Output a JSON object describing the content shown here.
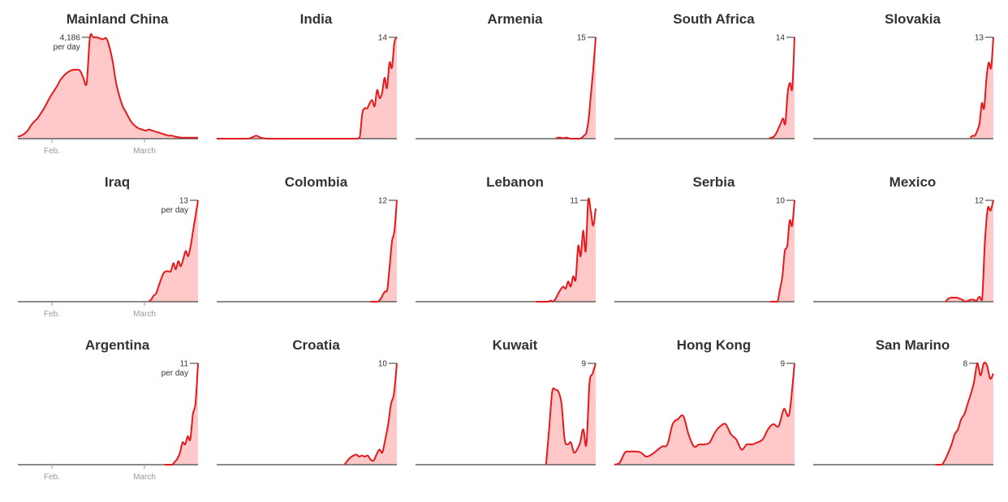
{
  "colors": {
    "line": "#e41a1c",
    "fill": "#ffc9c9",
    "baseline": "#444444",
    "tick": "#999999"
  },
  "per_day_label": "per day",
  "x_axis_labels": [
    "Feb.",
    "March"
  ],
  "chart_data": [
    {
      "type": "area",
      "title": "Mainland China",
      "peak_label": "4,186",
      "show_per_day": true,
      "show_axis": true,
      "ylim": [
        0,
        4186
      ],
      "values": [
        0.02,
        0.03,
        0.05,
        0.08,
        0.13,
        0.17,
        0.2,
        0.25,
        0.3,
        0.36,
        0.42,
        0.47,
        0.52,
        0.58,
        0.62,
        0.65,
        0.67,
        0.68,
        0.68,
        0.67,
        0.6,
        0.55,
        1.0,
        1.0,
        1.0,
        0.99,
        0.98,
        0.99,
        0.9,
        0.75,
        0.55,
        0.42,
        0.32,
        0.26,
        0.2,
        0.15,
        0.12,
        0.1,
        0.09,
        0.08,
        0.09,
        0.08,
        0.07,
        0.06,
        0.05,
        0.04,
        0.03,
        0.03,
        0.02,
        0.015,
        0.01,
        0.01,
        0.01,
        0.01,
        0.01,
        0.01
      ]
    },
    {
      "type": "area",
      "title": "India",
      "peak_label": "14",
      "show_per_day": false,
      "show_axis": false,
      "ylim": [
        0,
        14
      ],
      "values": [
        0,
        0,
        0,
        0,
        0,
        0,
        0,
        0,
        0,
        0,
        0,
        0,
        0,
        0,
        0.01,
        0.02,
        0.03,
        0.02,
        0.01,
        0.005,
        0,
        0,
        0,
        0,
        0,
        0,
        0,
        0,
        0,
        0,
        0,
        0,
        0,
        0,
        0,
        0,
        0,
        0,
        0,
        0,
        0,
        0,
        0,
        0,
        0,
        0,
        0,
        0,
        0,
        0,
        0,
        0,
        0,
        0,
        0,
        0,
        0,
        0,
        0.02,
        0.25,
        0.3,
        0.3,
        0.35,
        0.38,
        0.32,
        0.48,
        0.4,
        0.45,
        0.6,
        0.5,
        0.75,
        0.7,
        0.95,
        1.0
      ]
    },
    {
      "type": "area",
      "title": "Armenia",
      "peak_label": "15",
      "show_per_day": false,
      "show_axis": false,
      "ylim": [
        0,
        15
      ],
      "values": [
        null,
        null,
        null,
        null,
        null,
        null,
        null,
        null,
        null,
        null,
        null,
        null,
        null,
        null,
        null,
        null,
        null,
        null,
        null,
        null,
        null,
        null,
        null,
        null,
        null,
        null,
        null,
        null,
        null,
        null,
        null,
        null,
        null,
        null,
        null,
        null,
        null,
        null,
        null,
        null,
        null,
        null,
        null,
        null,
        null,
        null,
        null,
        null,
        null,
        null,
        null,
        null,
        null,
        null,
        null,
        null,
        null,
        null,
        null,
        null,
        0.005,
        0.01,
        0.01,
        0.005,
        0.01,
        0.01,
        0,
        0,
        0,
        0,
        0,
        0.01,
        0.03,
        0.06,
        0.2,
        0.45,
        0.7,
        1.0
      ]
    },
    {
      "type": "area",
      "title": "South Africa",
      "peak_label": "14",
      "show_per_day": false,
      "show_axis": false,
      "ylim": [
        0,
        14
      ],
      "values": [
        null,
        null,
        null,
        null,
        null,
        null,
        null,
        null,
        null,
        null,
        null,
        null,
        null,
        null,
        null,
        null,
        null,
        null,
        null,
        null,
        null,
        null,
        null,
        null,
        null,
        null,
        null,
        null,
        null,
        null,
        null,
        null,
        null,
        null,
        null,
        null,
        null,
        null,
        null,
        null,
        null,
        null,
        null,
        null,
        null,
        null,
        null,
        null,
        null,
        null,
        null,
        null,
        null,
        null,
        null,
        null,
        null,
        null,
        null,
        null,
        null,
        null,
        null,
        null,
        null,
        null,
        null,
        0.005,
        0.01,
        0.02,
        0.05,
        0.1,
        0.15,
        0.2,
        0.15,
        0.45,
        0.55,
        0.5,
        1.0
      ]
    },
    {
      "type": "area",
      "title": "Slovakia",
      "peak_label": "13",
      "show_per_day": false,
      "show_axis": false,
      "ylim": [
        0,
        13
      ],
      "values": [
        null,
        null,
        null,
        null,
        null,
        null,
        null,
        null,
        null,
        null,
        null,
        null,
        null,
        null,
        null,
        null,
        null,
        null,
        null,
        null,
        null,
        null,
        null,
        null,
        null,
        null,
        null,
        null,
        null,
        null,
        null,
        null,
        null,
        null,
        null,
        null,
        null,
        null,
        null,
        null,
        null,
        null,
        null,
        null,
        null,
        null,
        null,
        null,
        null,
        null,
        null,
        null,
        null,
        null,
        null,
        null,
        null,
        null,
        null,
        null,
        null,
        null,
        null,
        null,
        null,
        null,
        null,
        null,
        0.01,
        0.03,
        0.03,
        0.08,
        0.15,
        0.35,
        0.3,
        0.6,
        0.75,
        0.7,
        1.0
      ]
    },
    {
      "type": "area",
      "title": "Iraq",
      "peak_label": "13",
      "show_per_day": true,
      "show_axis": true,
      "ylim": [
        0,
        13
      ],
      "values": [
        null,
        null,
        null,
        null,
        null,
        null,
        null,
        null,
        null,
        null,
        null,
        null,
        null,
        null,
        null,
        null,
        null,
        null,
        null,
        null,
        null,
        null,
        null,
        null,
        null,
        null,
        null,
        null,
        null,
        null,
        null,
        null,
        null,
        null,
        null,
        null,
        null,
        null,
        null,
        null,
        null,
        null,
        null,
        null,
        null,
        null,
        null,
        null,
        null,
        null,
        null,
        null,
        null,
        0,
        0.02,
        0.06,
        0.08,
        0.15,
        0.22,
        0.28,
        0.3,
        0.3,
        0.3,
        0.38,
        0.32,
        0.4,
        0.35,
        0.42,
        0.5,
        0.45,
        0.55,
        0.7,
        0.85,
        1.0
      ]
    },
    {
      "type": "area",
      "title": "Colombia",
      "peak_label": "12",
      "show_per_day": false,
      "show_axis": false,
      "ylim": [
        0,
        12
      ],
      "values": [
        null,
        null,
        null,
        null,
        null,
        null,
        null,
        null,
        null,
        null,
        null,
        null,
        null,
        null,
        null,
        null,
        null,
        null,
        null,
        null,
        null,
        null,
        null,
        null,
        null,
        null,
        null,
        null,
        null,
        null,
        null,
        null,
        null,
        null,
        null,
        null,
        null,
        null,
        null,
        null,
        null,
        null,
        null,
        null,
        null,
        null,
        null,
        null,
        null,
        null,
        null,
        null,
        null,
        null,
        null,
        null,
        null,
        null,
        null,
        null,
        null,
        null,
        null,
        null,
        0,
        0,
        0,
        0,
        0.02,
        0.06,
        0.1,
        0.12,
        0.35,
        0.6,
        0.7,
        1.0
      ]
    },
    {
      "type": "area",
      "title": "Lebanon",
      "peak_label": "11",
      "show_per_day": false,
      "show_axis": false,
      "ylim": [
        0,
        11
      ],
      "values": [
        null,
        null,
        null,
        null,
        null,
        null,
        null,
        null,
        null,
        null,
        null,
        null,
        null,
        null,
        null,
        null,
        null,
        null,
        null,
        null,
        null,
        null,
        null,
        null,
        null,
        null,
        null,
        null,
        null,
        null,
        null,
        null,
        null,
        null,
        null,
        null,
        null,
        null,
        null,
        null,
        null,
        null,
        null,
        null,
        null,
        null,
        null,
        null,
        0,
        0,
        0,
        0,
        0,
        0,
        0.01,
        0,
        0.03,
        0.08,
        0.12,
        0.15,
        0.13,
        0.2,
        0.15,
        0.25,
        0.22,
        0.55,
        0.45,
        0.7,
        0.5,
        1.0,
        0.9,
        0.75,
        0.92
      ]
    },
    {
      "type": "area",
      "title": "Serbia",
      "peak_label": "10",
      "show_per_day": false,
      "show_axis": false,
      "ylim": [
        0,
        10
      ],
      "values": [
        null,
        null,
        null,
        null,
        null,
        null,
        null,
        null,
        null,
        null,
        null,
        null,
        null,
        null,
        null,
        null,
        null,
        null,
        null,
        null,
        null,
        null,
        null,
        null,
        null,
        null,
        null,
        null,
        null,
        null,
        null,
        null,
        null,
        null,
        null,
        null,
        null,
        null,
        null,
        null,
        null,
        null,
        null,
        null,
        null,
        null,
        null,
        null,
        null,
        null,
        null,
        null,
        null,
        null,
        null,
        null,
        null,
        null,
        null,
        null,
        null,
        null,
        null,
        null,
        0,
        0,
        0,
        0,
        0.12,
        0.25,
        0.5,
        0.55,
        0.8,
        0.75,
        1.0
      ]
    },
    {
      "type": "area",
      "title": "Mexico",
      "peak_label": "12",
      "show_per_day": false,
      "show_axis": false,
      "ylim": [
        0,
        12
      ],
      "values": [
        null,
        null,
        null,
        null,
        null,
        null,
        null,
        null,
        null,
        null,
        null,
        null,
        null,
        null,
        null,
        null,
        null,
        null,
        null,
        null,
        null,
        null,
        null,
        null,
        null,
        null,
        null,
        null,
        null,
        null,
        null,
        null,
        null,
        null,
        null,
        null,
        null,
        null,
        null,
        null,
        null,
        null,
        null,
        null,
        null,
        null,
        null,
        0,
        0.03,
        0.04,
        0.04,
        0.04,
        0.03,
        0.02,
        0,
        0.01,
        0.02,
        0.02,
        0.01,
        0.05,
        0.02,
        0.6,
        0.92,
        0.9,
        1.0
      ]
    },
    {
      "type": "area",
      "title": "Argentina",
      "peak_label": "11",
      "show_per_day": true,
      "show_axis": true,
      "ylim": [
        0,
        11
      ],
      "values": [
        null,
        null,
        null,
        null,
        null,
        null,
        null,
        null,
        null,
        null,
        null,
        null,
        null,
        null,
        null,
        null,
        null,
        null,
        null,
        null,
        null,
        null,
        null,
        null,
        null,
        null,
        null,
        null,
        null,
        null,
        null,
        null,
        null,
        null,
        null,
        null,
        null,
        null,
        null,
        null,
        null,
        null,
        null,
        null,
        null,
        null,
        null,
        null,
        null,
        null,
        null,
        null,
        null,
        null,
        null,
        null,
        null,
        0,
        0,
        0,
        0,
        0.03,
        0.06,
        0.12,
        0.22,
        0.2,
        0.28,
        0.25,
        0.5,
        0.6,
        1.0
      ]
    },
    {
      "type": "area",
      "title": "Croatia",
      "peak_label": "10",
      "show_per_day": false,
      "show_axis": false,
      "ylim": [
        0,
        10
      ],
      "values": [
        null,
        null,
        null,
        null,
        null,
        null,
        null,
        null,
        null,
        null,
        null,
        null,
        null,
        null,
        null,
        null,
        null,
        null,
        null,
        null,
        null,
        null,
        null,
        null,
        null,
        null,
        null,
        null,
        null,
        null,
        null,
        null,
        null,
        null,
        null,
        null,
        null,
        null,
        null,
        null,
        null,
        null,
        null,
        null,
        0,
        0.04,
        0.07,
        0.09,
        0.1,
        0.08,
        0.09,
        0.08,
        0.09,
        0.05,
        0.04,
        0.1,
        0.15,
        0.12,
        0.25,
        0.4,
        0.6,
        0.7,
        1.0
      ]
    },
    {
      "type": "area",
      "title": "Kuwait",
      "peak_label": "9",
      "show_per_day": false,
      "show_axis": false,
      "ylim": [
        0,
        9
      ],
      "values": [
        null,
        null,
        null,
        null,
        null,
        null,
        null,
        null,
        null,
        null,
        null,
        null,
        null,
        null,
        null,
        null,
        null,
        null,
        null,
        null,
        null,
        null,
        null,
        null,
        null,
        null,
        null,
        null,
        null,
        null,
        null,
        null,
        null,
        null,
        null,
        null,
        null,
        null,
        null,
        null,
        null,
        null,
        0,
        0.35,
        0.72,
        0.74,
        0.72,
        0.6,
        0.25,
        0.2,
        0.22,
        0.12,
        0.15,
        0.22,
        0.35,
        0.2,
        0.8,
        0.9,
        1.0
      ]
    },
    {
      "type": "area",
      "title": "Hong Kong",
      "peak_label": "9",
      "show_per_day": false,
      "show_axis": false,
      "ylim": [
        0,
        9
      ],
      "values": [
        0,
        0.02,
        0.12,
        0.13,
        0.13,
        0.12,
        0.08,
        0.1,
        0.14,
        0.18,
        0.2,
        0.4,
        0.45,
        0.48,
        0.3,
        0.18,
        0.2,
        0.2,
        0.22,
        0.32,
        0.38,
        0.4,
        0.3,
        0.25,
        0.15,
        0.2,
        0.2,
        0.22,
        0.25,
        0.35,
        0.4,
        0.38,
        0.55,
        0.5,
        1.0
      ]
    },
    {
      "type": "area",
      "title": "San Marino",
      "peak_label": "8",
      "show_per_day": false,
      "show_axis": false,
      "ylim": [
        0,
        8
      ],
      "values": [
        null,
        null,
        null,
        null,
        null,
        null,
        null,
        null,
        null,
        null,
        null,
        null,
        null,
        null,
        null,
        null,
        null,
        null,
        null,
        null,
        null,
        null,
        null,
        null,
        null,
        null,
        null,
        null,
        null,
        null,
        null,
        null,
        null,
        null,
        null,
        null,
        null,
        null,
        0,
        0,
        0,
        0.05,
        0.12,
        0.2,
        0.3,
        0.35,
        0.45,
        0.5,
        0.6,
        0.7,
        0.82,
        1.0,
        0.88,
        1.0,
        0.98,
        0.85,
        0.9
      ]
    }
  ]
}
